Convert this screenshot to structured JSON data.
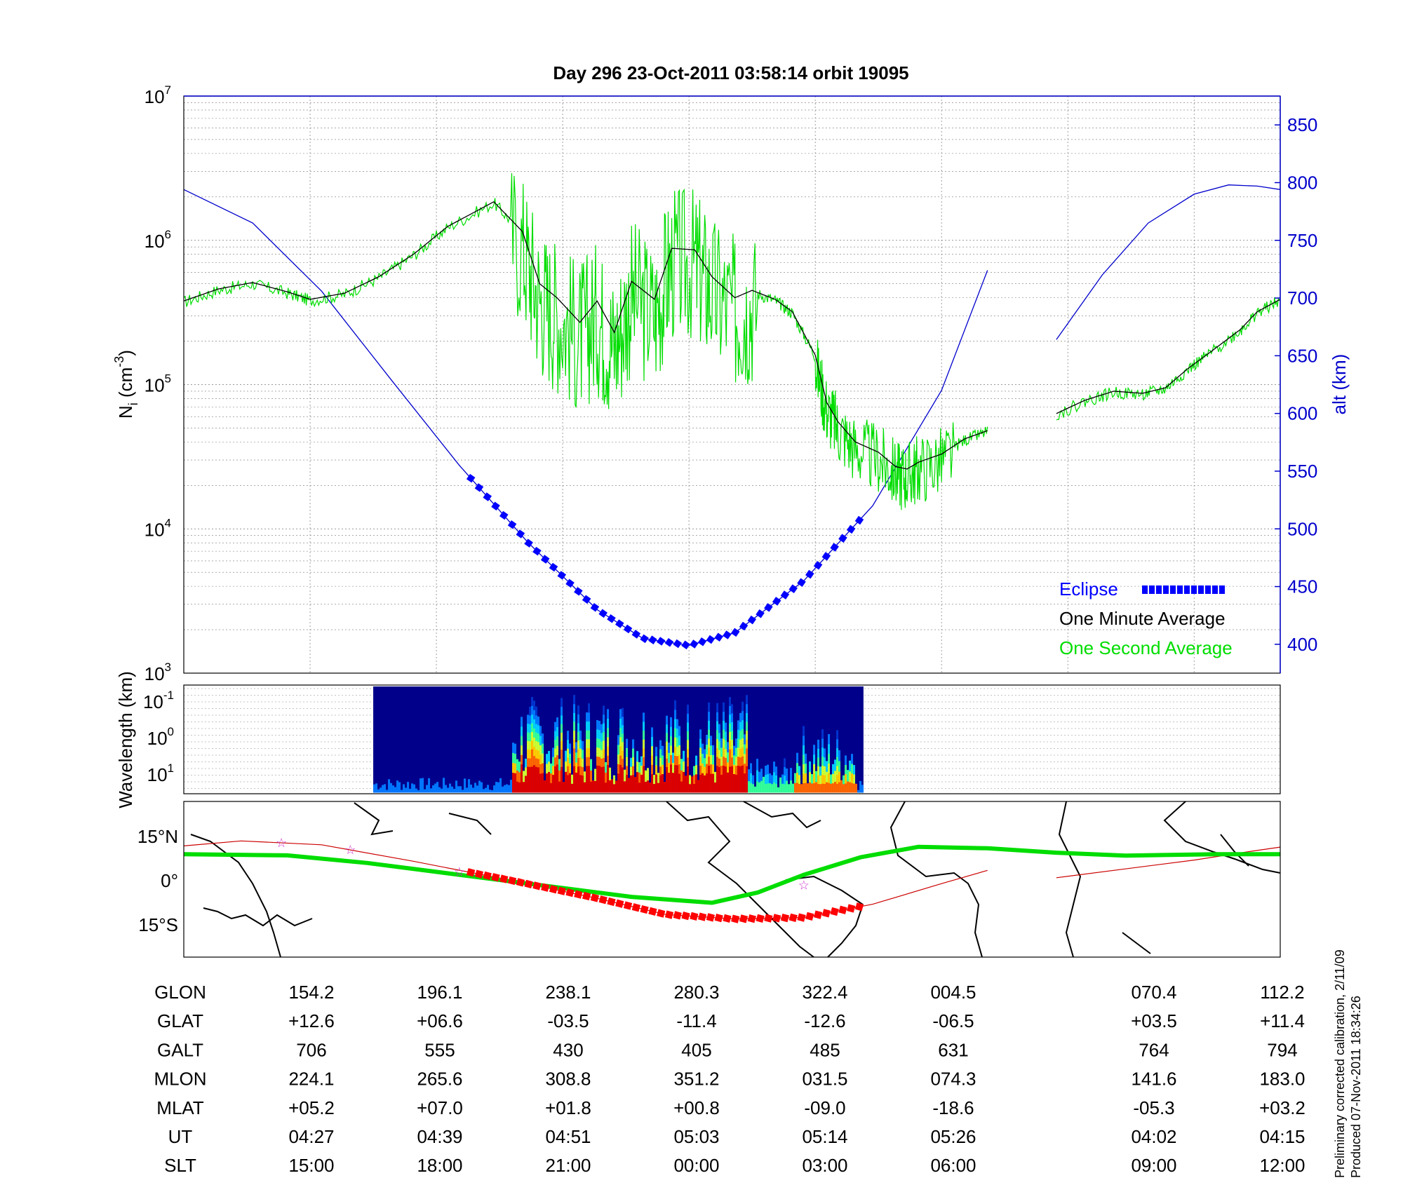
{
  "title": "Day 296  23-Oct-2011 03:58:14   orbit 19095",
  "footer": {
    "line1": "Preliminary corrected calibration, 2/11/09",
    "line2": "Produced 07-Nov-2011 18:34:26"
  },
  "colors": {
    "density_1s": "#00dd00",
    "density_1min": "#000000",
    "altitude": "#0000cc",
    "eclipse": "#0000ff",
    "eclipse_map": "#ff0000",
    "dip_equator": "#00dd00",
    "orbit_track": "#cc0000"
  },
  "chart_data": [
    {
      "type": "line",
      "panel": "density",
      "ylabel_left": "N",
      "ylabel_left_sub": "i",
      "ylabel_left_unit": " (cm",
      "ylabel_left_exp": "-3",
      "ylabel_left_close": ")",
      "ylabel_right": "alt (km)",
      "ylog": true,
      "ylim_left": [
        1000,
        10000000
      ],
      "ylim_right": [
        375,
        875
      ],
      "yticks_left": [
        {
          "base": "10",
          "exp": "3",
          "value": 1000
        },
        {
          "base": "10",
          "exp": "4",
          "value": 10000
        },
        {
          "base": "10",
          "exp": "5",
          "value": 100000
        },
        {
          "base": "10",
          "exp": "6",
          "value": 1000000
        },
        {
          "base": "10",
          "exp": "7",
          "value": 10000000
        }
      ],
      "yticks_right": [
        "400",
        "450",
        "500",
        "550",
        "600",
        "650",
        "700",
        "750",
        "800",
        "850"
      ],
      "x_ticks_ut": [
        "04:27",
        "04:39",
        "04:51",
        "05:03",
        "05:14",
        "05:26",
        "04:02",
        "04:15"
      ],
      "legend_position": "bottom-right",
      "legend": [
        {
          "label": "Eclipse",
          "color": "#0000ff"
        },
        {
          "label": "One Minute Average",
          "color": "#000000"
        },
        {
          "label": "One Second Average",
          "color": "#00dd00"
        }
      ],
      "series": [
        {
          "name": "One Minute Average",
          "x": [
            0,
            0.3,
            0.6,
            0.9,
            1.1,
            1.4,
            1.7,
            2.0,
            2.3,
            2.7,
            2.95,
            3.1,
            3.25,
            3.45,
            3.6,
            3.75,
            3.9,
            4.1,
            4.25,
            4.45,
            4.6,
            4.8,
            4.95,
            5.15,
            5.3,
            5.5,
            5.6,
            5.7,
            5.85,
            6.05,
            6.2,
            6.3,
            6.4,
            6.6,
            6.8,
            7.0
          ],
          "values": [
            380000,
            460000,
            510000,
            440000,
            390000,
            430000,
            560000,
            800000,
            1250000,
            1850000,
            1150000,
            500000,
            400000,
            270000,
            380000,
            230000,
            520000,
            390000,
            880000,
            860000,
            560000,
            400000,
            450000,
            390000,
            320000,
            160000,
            75000,
            55000,
            40000,
            34000,
            27000,
            26000,
            29000,
            33000,
            42000,
            48000
          ]
        },
        {
          "name": "One Minute Average (second segment)",
          "x": [
            7.6,
            7.85,
            8.1,
            8.35,
            8.55,
            8.75,
            8.95,
            9.2,
            9.35,
            9.55
          ],
          "values": [
            63000,
            78000,
            90000,
            87000,
            95000,
            130000,
            170000,
            240000,
            320000,
            390000
          ]
        },
        {
          "name": "alt (km)",
          "x": [
            0,
            0.6,
            1.2,
            1.8,
            2.4,
            3.0,
            3.6,
            4.0,
            4.4,
            4.8,
            5.4,
            6.0,
            6.6,
            7.0
          ],
          "values": [
            794,
            765,
            706,
            630,
            555,
            488,
            430,
            405,
            399,
            410,
            455,
            520,
            620,
            724
          ]
        },
        {
          "name": "alt (km) (second segment)",
          "x": [
            7.6,
            8.0,
            8.4,
            8.8,
            9.1,
            9.35,
            9.55
          ],
          "values": [
            664,
            720,
            765,
            790,
            798,
            797,
            794
          ]
        }
      ],
      "eclipse_x_range": [
        2.5,
        5.9
      ]
    },
    {
      "type": "heatmap",
      "panel": "spectrogram",
      "ylabel": "Wavelength (km)",
      "yticks": [
        {
          "base": "10",
          "exp": "-1"
        },
        {
          "base": "10",
          "exp": "0"
        },
        {
          "base": "10",
          "exp": "1"
        }
      ],
      "x_range": [
        1.65,
        5.92
      ]
    },
    {
      "type": "map",
      "panel": "ground-track",
      "yticks": [
        "15°N",
        "0°",
        "15°S"
      ]
    },
    {
      "type": "table",
      "panel": "ephemeris",
      "rows": [
        {
          "label": "GLON",
          "values": [
            "154.2",
            "196.1",
            "238.1",
            "280.3",
            "322.4",
            "004.5",
            "070.4",
            "112.2"
          ]
        },
        {
          "label": "GLAT",
          "values": [
            "+12.6",
            "+06.6",
            "-03.5",
            "-11.4",
            "-12.6",
            "-06.5",
            "+03.5",
            "+11.4"
          ]
        },
        {
          "label": "GALT",
          "values": [
            "706",
            "555",
            "430",
            "405",
            "485",
            "631",
            "764",
            "794"
          ]
        },
        {
          "label": "MLON",
          "values": [
            "224.1",
            "265.6",
            "308.8",
            "351.2",
            "031.5",
            "074.3",
            "141.6",
            "183.0"
          ]
        },
        {
          "label": "MLAT",
          "values": [
            "+05.2",
            "+07.0",
            "+01.8",
            "+00.8",
            "-09.0",
            "-18.6",
            "-05.3",
            "+03.2"
          ]
        },
        {
          "label": "UT",
          "values": [
            "04:27",
            "04:39",
            "04:51",
            "05:03",
            "05:14",
            "05:26",
            "04:02",
            "04:15"
          ]
        },
        {
          "label": "SLT",
          "values": [
            "15:00",
            "18:00",
            "21:00",
            "00:00",
            "03:00",
            "06:00",
            "09:00",
            "12:00"
          ]
        }
      ]
    }
  ]
}
